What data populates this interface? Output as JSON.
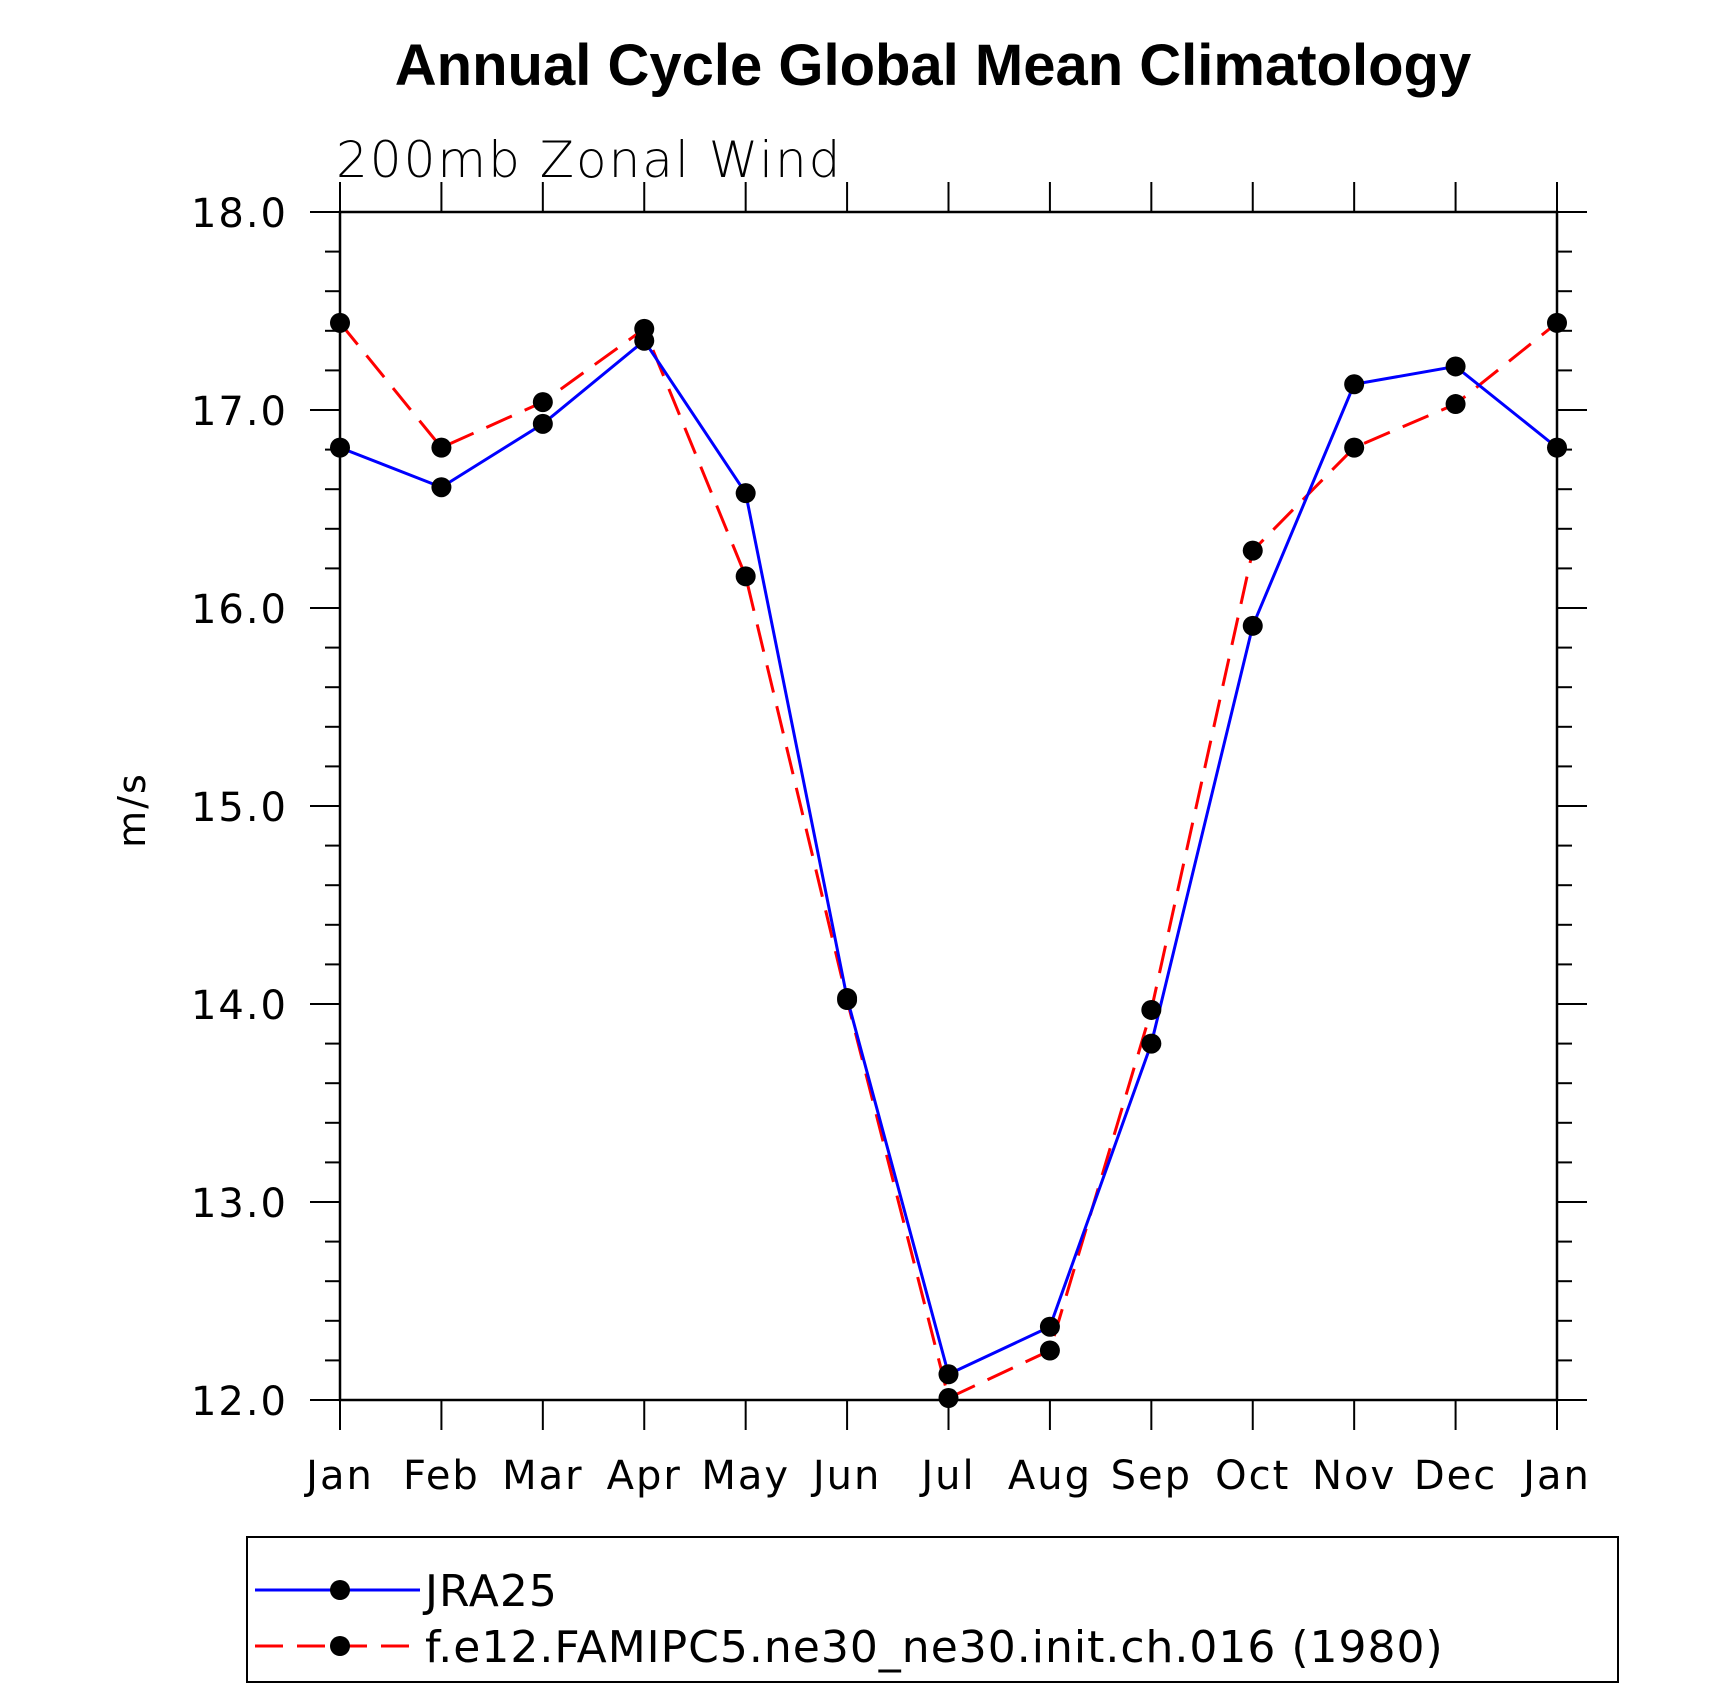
{
  "chart_data": {
    "type": "line",
    "title": "Annual Cycle Global Mean Climatology",
    "subtitle": "200mb Zonal Wind",
    "ylabel": "m/s",
    "xlabel": "",
    "categories": [
      "Jan",
      "Feb",
      "Mar",
      "Apr",
      "May",
      "Jun",
      "Jul",
      "Aug",
      "Sep",
      "Oct",
      "Nov",
      "Dec",
      "Jan"
    ],
    "ylim": [
      12.0,
      18.0
    ],
    "yticks": [
      "12.0",
      "13.0",
      "14.0",
      "15.0",
      "16.0",
      "17.0",
      "18.0"
    ],
    "grid": false,
    "legend_position": "bottom",
    "series": [
      {
        "name": "JRA25",
        "color": "#0000ff",
        "dash": "solid",
        "marker": "filled-circle",
        "values": [
          16.81,
          16.61,
          16.93,
          17.35,
          16.58,
          14.03,
          12.13,
          12.37,
          13.8,
          15.91,
          17.13,
          17.22,
          16.81
        ]
      },
      {
        "name": "f.e12.FAMIPC5.ne30_ne30.init.ch.016 (1980)",
        "color": "#ff0000",
        "dash": "dashed",
        "marker": "filled-circle",
        "values": [
          17.44,
          16.81,
          17.04,
          17.41,
          16.16,
          14.02,
          12.01,
          12.25,
          13.97,
          16.29,
          16.81,
          17.03,
          17.44
        ]
      }
    ]
  }
}
